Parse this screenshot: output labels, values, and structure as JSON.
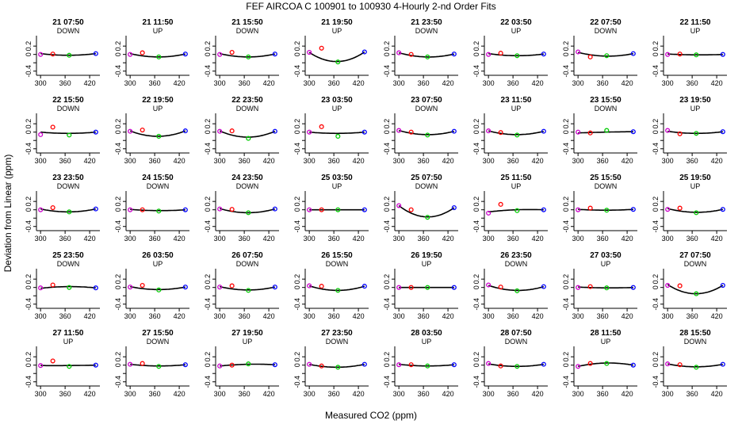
{
  "title": "FEF   AIRCOA C   100901 to 100930   4-Hourly 2-nd Order Fits",
  "xlabel": "Measured CO2 (ppm)",
  "ylabel": "Deviation from Linear (ppm)",
  "colors": {
    "curve": "#000000",
    "pt_magenta": "#cc00cc",
    "pt_red": "#ff0000",
    "pt_green": "#00cc00",
    "pt_blue": "#0000ff"
  },
  "chart_data": {
    "type": "scatter",
    "layout": "small-multiples-5x8",
    "xlim": [
      290,
      445
    ],
    "ylim": [
      -0.5,
      0.45
    ],
    "xticks": [
      300,
      360,
      420
    ],
    "yticks": [
      -0.4,
      -0.2,
      0.0,
      0.2
    ],
    "ytick_labels": [
      "-0.4",
      "",
      "0",
      "0.2"
    ],
    "shown_ytick_labels": [
      "0.2",
      "-0.4"
    ],
    "xtick_labels": [
      "300",
      "360",
      "420"
    ],
    "reference_x": [
      300,
      330,
      370,
      435
    ],
    "panels": [
      {
        "title": "21 07:50",
        "direction": "DOWN",
        "points": [
          0.0,
          0.01,
          -0.02,
          0.02
        ],
        "curve": [
          0.02,
          -0.02,
          0.02
        ]
      },
      {
        "title": "21 11:50",
        "direction": "UP",
        "points": [
          0.0,
          0.04,
          -0.06,
          0.01
        ],
        "curve": [
          0.02,
          -0.06,
          0.01
        ]
      },
      {
        "title": "21 15:50",
        "direction": "DOWN",
        "points": [
          0.0,
          0.05,
          -0.06,
          0.01
        ],
        "curve": [
          0.02,
          -0.06,
          0.01
        ]
      },
      {
        "title": "21 19:50",
        "direction": "UP",
        "points": [
          0.05,
          0.15,
          -0.18,
          0.06
        ],
        "curve": [
          0.05,
          -0.17,
          0.06
        ]
      },
      {
        "title": "21 23:50",
        "direction": "DOWN",
        "points": [
          0.04,
          0.0,
          -0.06,
          0.01
        ],
        "curve": [
          0.04,
          -0.06,
          0.01
        ]
      },
      {
        "title": "22 03:50",
        "direction": "UP",
        "points": [
          0.0,
          0.03,
          -0.03,
          0.01
        ],
        "curve": [
          0.02,
          -0.03,
          0.01
        ]
      },
      {
        "title": "22 07:50",
        "direction": "DOWN",
        "points": [
          0.06,
          -0.06,
          -0.03,
          0.02
        ],
        "curve": [
          0.05,
          -0.04,
          0.02
        ]
      },
      {
        "title": "22 11:50",
        "direction": "UP",
        "points": [
          0.0,
          0.01,
          -0.01,
          0.0
        ],
        "curve": [
          0.01,
          -0.01,
          0.0
        ]
      },
      {
        "title": "22 15:50",
        "direction": "DOWN",
        "points": [
          -0.06,
          0.12,
          -0.07,
          0.0
        ],
        "curve": [
          0.0,
          -0.03,
          0.0
        ]
      },
      {
        "title": "22 19:50",
        "direction": "UP",
        "points": [
          0.02,
          0.05,
          -0.1,
          0.03
        ],
        "curve": [
          0.03,
          -0.1,
          0.03
        ]
      },
      {
        "title": "22 23:50",
        "direction": "DOWN",
        "points": [
          0.02,
          0.03,
          -0.15,
          0.02
        ],
        "curve": [
          0.03,
          -0.12,
          0.02
        ]
      },
      {
        "title": "23 03:50",
        "direction": "UP",
        "points": [
          0.0,
          0.13,
          -0.1,
          0.0
        ],
        "curve": [
          0.0,
          -0.03,
          0.0
        ]
      },
      {
        "title": "23 07:50",
        "direction": "DOWN",
        "points": [
          0.04,
          0.0,
          -0.07,
          0.02
        ],
        "curve": [
          0.04,
          -0.06,
          0.02
        ]
      },
      {
        "title": "23 11:50",
        "direction": "UP",
        "points": [
          0.03,
          -0.01,
          -0.07,
          0.02
        ],
        "curve": [
          0.03,
          -0.06,
          0.02
        ]
      },
      {
        "title": "23 15:50",
        "direction": "DOWN",
        "points": [
          0.0,
          -0.02,
          0.04,
          0.01
        ],
        "curve": [
          -0.02,
          0.0,
          0.01
        ]
      },
      {
        "title": "23 19:50",
        "direction": "UP",
        "points": [
          0.04,
          -0.04,
          -0.03,
          0.01
        ],
        "curve": [
          0.02,
          -0.03,
          0.01
        ]
      },
      {
        "title": "23 23:50",
        "direction": "DOWN",
        "points": [
          0.0,
          0.05,
          -0.05,
          0.02
        ],
        "curve": [
          0.02,
          -0.05,
          0.02
        ]
      },
      {
        "title": "24 15:50",
        "direction": "DOWN",
        "points": [
          0.0,
          0.0,
          -0.03,
          0.0
        ],
        "curve": [
          0.01,
          -0.02,
          0.0
        ]
      },
      {
        "title": "24 23:50",
        "direction": "DOWN",
        "points": [
          0.02,
          0.01,
          -0.07,
          0.02
        ],
        "curve": [
          0.03,
          -0.07,
          0.02
        ]
      },
      {
        "title": "25 03:50",
        "direction": "UP",
        "points": [
          0.0,
          0.0,
          0.0,
          0.0
        ],
        "curve": [
          0.0,
          0.0,
          0.0
        ]
      },
      {
        "title": "25 07:50",
        "direction": "DOWN",
        "points": [
          0.1,
          0.0,
          -0.18,
          0.05
        ],
        "curve": [
          0.1,
          -0.17,
          0.05
        ]
      },
      {
        "title": "25 11:50",
        "direction": "UP",
        "points": [
          -0.08,
          0.13,
          -0.02,
          0.0
        ],
        "curve": [
          -0.05,
          0.0,
          0.0
        ]
      },
      {
        "title": "25 15:50",
        "direction": "DOWN",
        "points": [
          0.0,
          0.04,
          -0.01,
          0.01
        ],
        "curve": [
          0.01,
          -0.01,
          0.01
        ]
      },
      {
        "title": "25 19:50",
        "direction": "UP",
        "points": [
          0.01,
          0.04,
          -0.07,
          0.01
        ],
        "curve": [
          0.03,
          -0.06,
          0.01
        ]
      },
      {
        "title": "25 23:50",
        "direction": "DOWN",
        "points": [
          -0.01,
          0.06,
          0.0,
          -0.01
        ],
        "curve": [
          -0.02,
          0.02,
          -0.01
        ]
      },
      {
        "title": "26 03:50",
        "direction": "UP",
        "points": [
          0.01,
          0.05,
          -0.06,
          0.01
        ],
        "curve": [
          0.02,
          -0.05,
          0.01
        ]
      },
      {
        "title": "26 07:50",
        "direction": "DOWN",
        "points": [
          0.01,
          0.04,
          -0.07,
          0.01
        ],
        "curve": [
          0.02,
          -0.06,
          0.01
        ]
      },
      {
        "title": "26 15:50",
        "direction": "DOWN",
        "points": [
          0.04,
          0.03,
          -0.07,
          0.03
        ],
        "curve": [
          0.04,
          -0.07,
          0.03
        ]
      },
      {
        "title": "26 19:50",
        "direction": "UP",
        "points": [
          0.0,
          0.0,
          0.0,
          0.0
        ],
        "curve": [
          0.0,
          0.0,
          0.0
        ]
      },
      {
        "title": "26 23:50",
        "direction": "DOWN",
        "points": [
          0.06,
          0.01,
          -0.08,
          0.02
        ],
        "curve": [
          0.05,
          -0.07,
          0.02
        ]
      },
      {
        "title": "27 03:50",
        "direction": "UP",
        "points": [
          0.0,
          0.02,
          -0.01,
          0.0
        ],
        "curve": [
          0.01,
          -0.01,
          0.0
        ]
      },
      {
        "title": "27 07:50",
        "direction": "DOWN",
        "points": [
          0.05,
          0.04,
          -0.15,
          0.05
        ],
        "curve": [
          0.07,
          -0.15,
          0.05
        ]
      },
      {
        "title": "27 11:50",
        "direction": "UP",
        "points": [
          -0.01,
          0.1,
          -0.03,
          0.0
        ],
        "curve": [
          -0.01,
          -0.01,
          0.0
        ]
      },
      {
        "title": "27 15:50",
        "direction": "DOWN",
        "points": [
          0.02,
          0.04,
          -0.03,
          0.01
        ],
        "curve": [
          0.02,
          -0.02,
          0.01
        ]
      },
      {
        "title": "27 19:50",
        "direction": "UP",
        "points": [
          -0.02,
          0.0,
          0.03,
          0.01
        ],
        "curve": [
          -0.02,
          0.02,
          0.01
        ]
      },
      {
        "title": "27 23:50",
        "direction": "DOWN",
        "points": [
          0.02,
          -0.02,
          -0.05,
          0.02
        ],
        "curve": [
          0.02,
          -0.05,
          0.02
        ]
      },
      {
        "title": "28 03:50",
        "direction": "UP",
        "points": [
          0.01,
          0.01,
          -0.02,
          0.01
        ],
        "curve": [
          0.02,
          -0.02,
          0.01
        ]
      },
      {
        "title": "28 07:50",
        "direction": "DOWN",
        "points": [
          0.04,
          -0.02,
          -0.03,
          0.02
        ],
        "curve": [
          0.03,
          -0.03,
          0.02
        ]
      },
      {
        "title": "28 11:50",
        "direction": "UP",
        "points": [
          -0.03,
          0.04,
          0.04,
          0.0
        ],
        "curve": [
          -0.03,
          0.05,
          0.0
        ]
      },
      {
        "title": "28 15:50",
        "direction": "DOWN",
        "points": [
          0.03,
          0.01,
          -0.05,
          0.02
        ],
        "curve": [
          0.03,
          -0.04,
          0.02
        ]
      }
    ]
  }
}
